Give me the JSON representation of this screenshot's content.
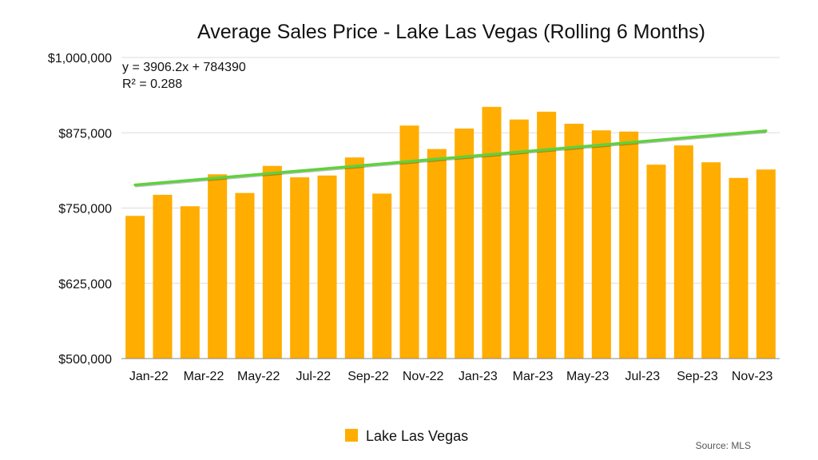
{
  "chart_data": {
    "type": "bar",
    "title": "Average Sales Price - Lake Las Vegas (Rolling 6 Months)",
    "xlabel": "",
    "ylabel": "",
    "ylim": [
      500000,
      1000000
    ],
    "yticks": [
      500000,
      625000,
      750000,
      875000,
      1000000
    ],
    "ytick_labels": [
      "$500,000",
      "$625,000",
      "$750,000",
      "$875,000",
      "$1,000,000"
    ],
    "grid": true,
    "categories": [
      "Jan-22",
      "Feb-22",
      "Mar-22",
      "Apr-22",
      "May-22",
      "Jun-22",
      "Jul-22",
      "Aug-22",
      "Sep-22",
      "Oct-22",
      "Nov-22",
      "Dec-22",
      "Jan-23",
      "Feb-23",
      "Mar-23",
      "Apr-23",
      "May-23",
      "Jun-23",
      "Jul-23",
      "Aug-23",
      "Sep-23",
      "Oct-23",
      "Nov-23",
      "Dec-23"
    ],
    "xtick_labels_shown": [
      "Jan-22",
      "Mar-22",
      "May-22",
      "Jul-22",
      "Sep-22",
      "Nov-22",
      "Jan-23",
      "Mar-23",
      "May-23",
      "Jul-23",
      "Sep-23",
      "Nov-23"
    ],
    "series": [
      {
        "name": "Lake Las Vegas",
        "color": "#FFAD00",
        "values": [
          737000,
          772000,
          753000,
          806000,
          775000,
          820000,
          801000,
          804000,
          834000,
          774000,
          887000,
          848000,
          882000,
          918000,
          897000,
          910000,
          890000,
          879000,
          877000,
          822000,
          854000,
          826000,
          800000,
          814000
        ]
      }
    ],
    "trendline": {
      "type": "linear",
      "slope": 3906.2,
      "intercept": 784390,
      "r_squared": 0.288,
      "equation_label": "y = 3906.2x + 784390",
      "r2_label": "R² = 0.288",
      "color": "#5FD13E"
    },
    "legend": {
      "position": "bottom",
      "entries": [
        "Lake Las Vegas"
      ]
    },
    "source_note": "Source: MLS"
  }
}
